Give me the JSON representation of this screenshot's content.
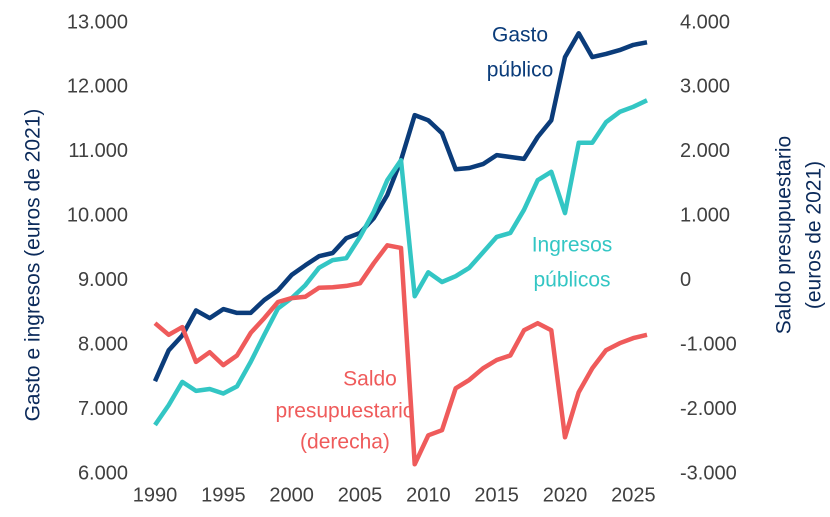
{
  "chart_data": {
    "type": "line",
    "ylabel": "Gasto e ingresos (euros de 2021)",
    "y2label": [
      "Saldo presupuestario",
      "(euros de 2021)"
    ],
    "x": [
      1990,
      1991,
      1992,
      1993,
      1994,
      1995,
      1996,
      1997,
      1998,
      1999,
      2000,
      2001,
      2002,
      2003,
      2004,
      2005,
      2006,
      2007,
      2008,
      2009,
      2010,
      2011,
      2012,
      2013,
      2014,
      2015,
      2016,
      2017,
      2018,
      2019,
      2020,
      2021,
      2022,
      2023,
      2024,
      2025,
      2026
    ],
    "xlim": [
      1990,
      2026
    ],
    "xticks": [
      1990,
      1995,
      2000,
      2005,
      2010,
      2015,
      2020,
      2025
    ],
    "ylim": [
      6000,
      13000
    ],
    "yticks": [
      {
        "value": 6000,
        "label": "6.000"
      },
      {
        "value": 7000,
        "label": "7.000"
      },
      {
        "value": 8000,
        "label": "8.000"
      },
      {
        "value": 9000,
        "label": "9.000"
      },
      {
        "value": 10000,
        "label": "10.000"
      },
      {
        "value": 11000,
        "label": "11.000"
      },
      {
        "value": 12000,
        "label": "12.000"
      },
      {
        "value": 13000,
        "label": "13.000"
      }
    ],
    "y2lim": [
      -3000,
      4000
    ],
    "y2ticks": [
      {
        "value": -3000,
        "label": "-3.000"
      },
      {
        "value": -2000,
        "label": "-2.000"
      },
      {
        "value": -1000,
        "label": "-1.000"
      },
      0,
      {
        "value": 1000,
        "label": "1.000"
      },
      {
        "value": 2000,
        "label": "2.000"
      },
      {
        "value": 3000,
        "label": "3.000"
      },
      {
        "value": 4000,
        "label": "4.000"
      }
    ],
    "series": [
      {
        "name": [
          "Gasto",
          "público"
        ],
        "color": "#0b3c7a",
        "values": [
          7440,
          7920,
          8150,
          8540,
          8420,
          8560,
          8500,
          8500,
          8700,
          8850,
          9090,
          9240,
          9380,
          9430,
          9660,
          9740,
          9970,
          10330,
          10870,
          11570,
          11490,
          11290,
          10730,
          10750,
          10810,
          10950,
          10920,
          10890,
          11230,
          11490,
          12470,
          12840,
          12470,
          12520,
          12580,
          12660,
          12700
        ]
      },
      {
        "name": [
          "Ingresos",
          "públicos"
        ],
        "color": "#33c6c4",
        "values": [
          6760,
          7070,
          7430,
          7290,
          7320,
          7250,
          7360,
          7740,
          8160,
          8570,
          8730,
          8930,
          9200,
          9320,
          9350,
          9680,
          10070,
          10560,
          10870,
          8760,
          9130,
          8980,
          9070,
          9200,
          9440,
          9680,
          9740,
          10100,
          10560,
          10690,
          10050,
          11140,
          11140,
          11460,
          11620,
          11700,
          11800
        ]
      },
      {
        "name": [
          "Saldo",
          "presupuestario",
          "(derecha)"
        ],
        "color": "#ef5b5b",
        "axis": "y2",
        "values": [
          -660,
          -840,
          -720,
          -1260,
          -1110,
          -1310,
          -1160,
          -810,
          -580,
          -330,
          -270,
          -250,
          -110,
          -100,
          -80,
          -40,
          270,
          550,
          510,
          -2850,
          -2400,
          -2320,
          -1670,
          -1540,
          -1360,
          -1230,
          -1160,
          -770,
          -660,
          -770,
          -2430,
          -1730,
          -1360,
          -1080,
          -970,
          -890,
          -840
        ]
      }
    ]
  }
}
